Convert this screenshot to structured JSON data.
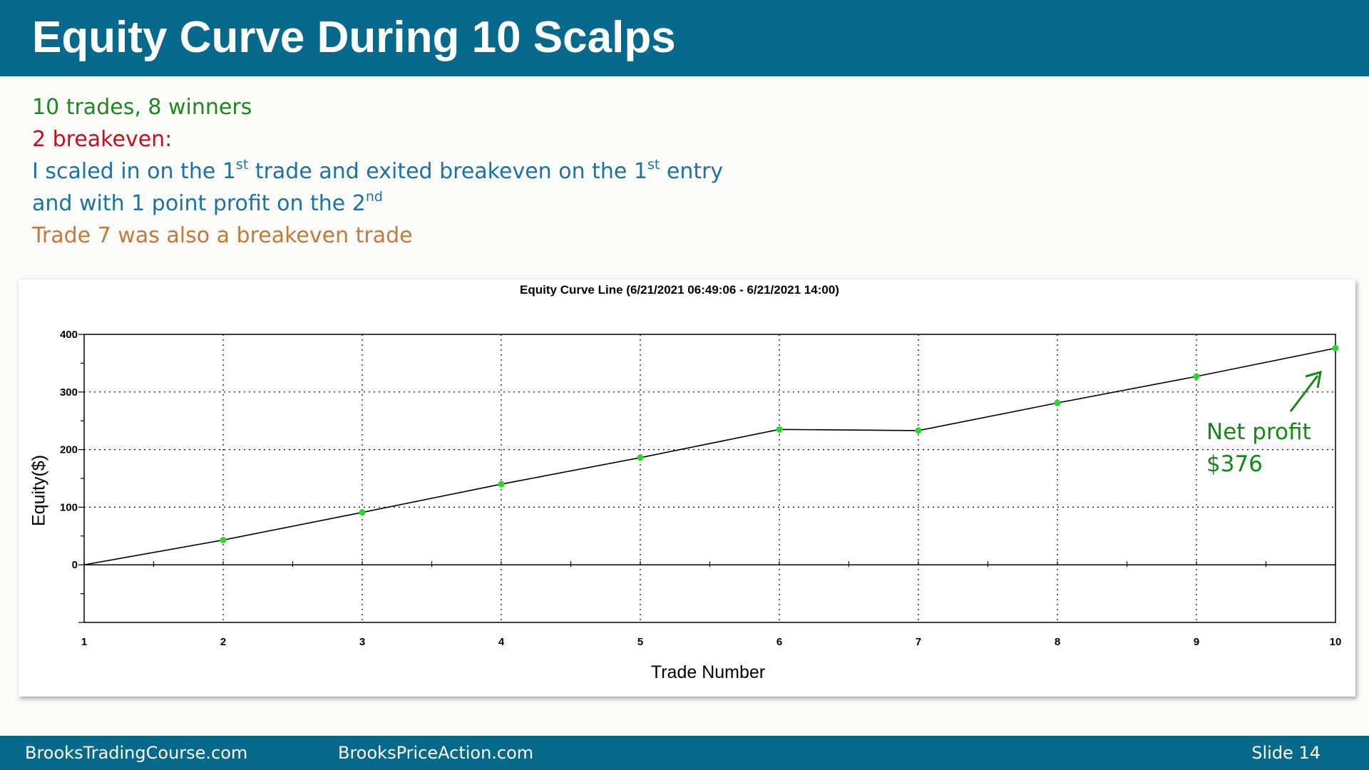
{
  "slide": {
    "title": "Equity Curve During 10 Scalps",
    "bullets": [
      {
        "text": "10 trades, 8 winners",
        "color": "#1a8a1a"
      },
      {
        "text": "2 breakeven:",
        "color": "#c0121c"
      },
      {
        "parts": [
          "I scaled in on the 1",
          "st",
          " trade and exited breakeven on the 1",
          "st",
          " entry"
        ],
        "color": "#1b72a8"
      },
      {
        "parts": [
          "and with 1 point profit on the 2",
          "nd"
        ],
        "color": "#1b72a8"
      },
      {
        "text": "Trade 7 was also a breakeven trade",
        "color": "#c47a36"
      }
    ],
    "annotation": {
      "line1": "Net profit",
      "line2": "$376",
      "color": "#138a13"
    },
    "footer": {
      "left": "BrooksTradingCourse.com",
      "center": "BrooksPriceAction.com",
      "right": "Slide  14"
    }
  },
  "chart_data": {
    "type": "line",
    "title": "Equity Curve Line (6/21/2021 06:49:06 - 6/21/2021 14:00)",
    "xlabel": "Trade Number",
    "ylabel": "Equity($)",
    "x": [
      1,
      2,
      3,
      4,
      5,
      6,
      7,
      8,
      9,
      10
    ],
    "series": [
      {
        "values": [
          0,
          43,
          91,
          140,
          186,
          235,
          233,
          281,
          327,
          376
        ]
      }
    ],
    "ylim": [
      -100,
      400
    ],
    "yticks": [
      0,
      100,
      200,
      300,
      400
    ],
    "xlim": [
      1,
      10
    ],
    "grid": true,
    "marker_color": "#22dd22",
    "line_color": "#000000"
  }
}
